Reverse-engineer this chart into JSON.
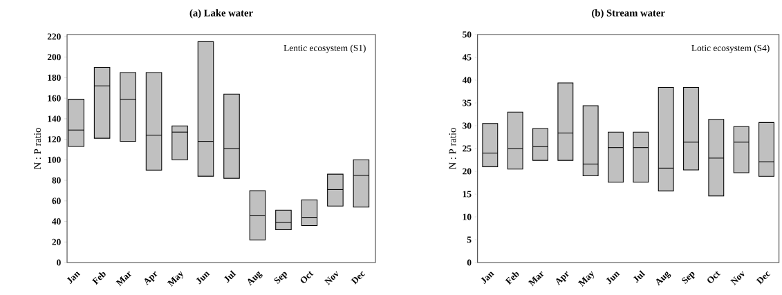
{
  "chart_data": [
    {
      "type": "box",
      "title": "(a) Lake water",
      "ylabel": "N : P ratio",
      "annotations": [
        "Lentic ecosystem (S1)"
      ],
      "categories": [
        "Jan",
        "Feb",
        "Mar",
        "Apr",
        "May",
        "Jun",
        "Jul",
        "Aug",
        "Sep",
        "Oct",
        "Nov",
        "Dec"
      ],
      "ylim": [
        0,
        222
      ],
      "yticks": [
        0,
        20,
        40,
        60,
        80,
        100,
        120,
        140,
        160,
        180,
        200,
        220
      ],
      "series": [
        {
          "color": "#c0c0c0",
          "boxes": [
            {
              "low": 113,
              "q1": 113,
              "median": 129,
              "q3": 159,
              "high": 159
            },
            {
              "low": 121,
              "q1": 121,
              "median": 172,
              "q3": 190,
              "high": 190
            },
            {
              "low": 118,
              "q1": 118,
              "median": 159,
              "q3": 185,
              "high": 185
            },
            {
              "low": 90,
              "q1": 90,
              "median": 124,
              "q3": 185,
              "high": 185
            },
            {
              "low": 100,
              "q1": 100,
              "median": 127,
              "q3": 133,
              "high": 133
            },
            {
              "low": 84,
              "q1": 84,
              "median": 118,
              "q3": 215,
              "high": 215
            },
            {
              "low": 82,
              "q1": 82,
              "median": 111,
              "q3": 164,
              "high": 164
            },
            {
              "low": 22,
              "q1": 22,
              "median": 46,
              "q3": 70,
              "high": 70
            },
            {
              "low": 32,
              "q1": 32,
              "median": 39,
              "q3": 51,
              "high": 51
            },
            {
              "low": 36,
              "q1": 36,
              "median": 44,
              "q3": 61,
              "high": 61
            },
            {
              "low": 55,
              "q1": 55,
              "median": 71,
              "q3": 86,
              "high": 86
            },
            {
              "low": 54,
              "q1": 54,
              "median": 85,
              "q3": 100,
              "high": 100
            }
          ]
        }
      ]
    },
    {
      "type": "box",
      "title": "(b) Stream water",
      "ylabel": "N : P ratio",
      "annotations": [
        "Lotic ecosystem (S4)"
      ],
      "categories": [
        "Jan",
        "Feb",
        "Mar",
        "Apr",
        "May",
        "Jun",
        "Jul",
        "Aug",
        "Sep",
        "Oct",
        "Nov",
        "Dec"
      ],
      "ylim": [
        0,
        50
      ],
      "yticks": [
        0,
        5,
        10,
        15,
        20,
        25,
        30,
        35,
        40,
        45,
        50
      ],
      "series": [
        {
          "color": "#c0c0c0",
          "boxes": [
            {
              "low": 21,
              "q1": 21,
              "median": 24,
              "q3": 30.5,
              "high": 30.5
            },
            {
              "low": 20.5,
              "q1": 20.5,
              "median": 25,
              "q3": 33,
              "high": 33
            },
            {
              "low": 22.4,
              "q1": 22.4,
              "median": 25.4,
              "q3": 29.4,
              "high": 29.4
            },
            {
              "low": 22.4,
              "q1": 22.4,
              "median": 28.4,
              "q3": 39.4,
              "high": 39.4
            },
            {
              "low": 19,
              "q1": 19,
              "median": 21.6,
              "q3": 34.4,
              "high": 34.4
            },
            {
              "low": 17.6,
              "q1": 17.6,
              "median": 25.2,
              "q3": 28.6,
              "high": 28.6
            },
            {
              "low": 17.6,
              "q1": 17.6,
              "median": 25.2,
              "q3": 28.6,
              "high": 28.6
            },
            {
              "low": 15.7,
              "q1": 15.7,
              "median": 20.7,
              "q3": 38.4,
              "high": 38.4
            },
            {
              "low": 20.3,
              "q1": 20.3,
              "median": 26.4,
              "q3": 38.4,
              "high": 38.4
            },
            {
              "low": 14.6,
              "q1": 14.6,
              "median": 22.9,
              "q3": 31.4,
              "high": 31.4
            },
            {
              "low": 19.7,
              "q1": 19.7,
              "median": 26.4,
              "q3": 29.8,
              "high": 29.8
            },
            {
              "low": 18.9,
              "q1": 18.9,
              "median": 22.1,
              "q3": 30.7,
              "high": 30.7
            }
          ]
        }
      ]
    }
  ]
}
